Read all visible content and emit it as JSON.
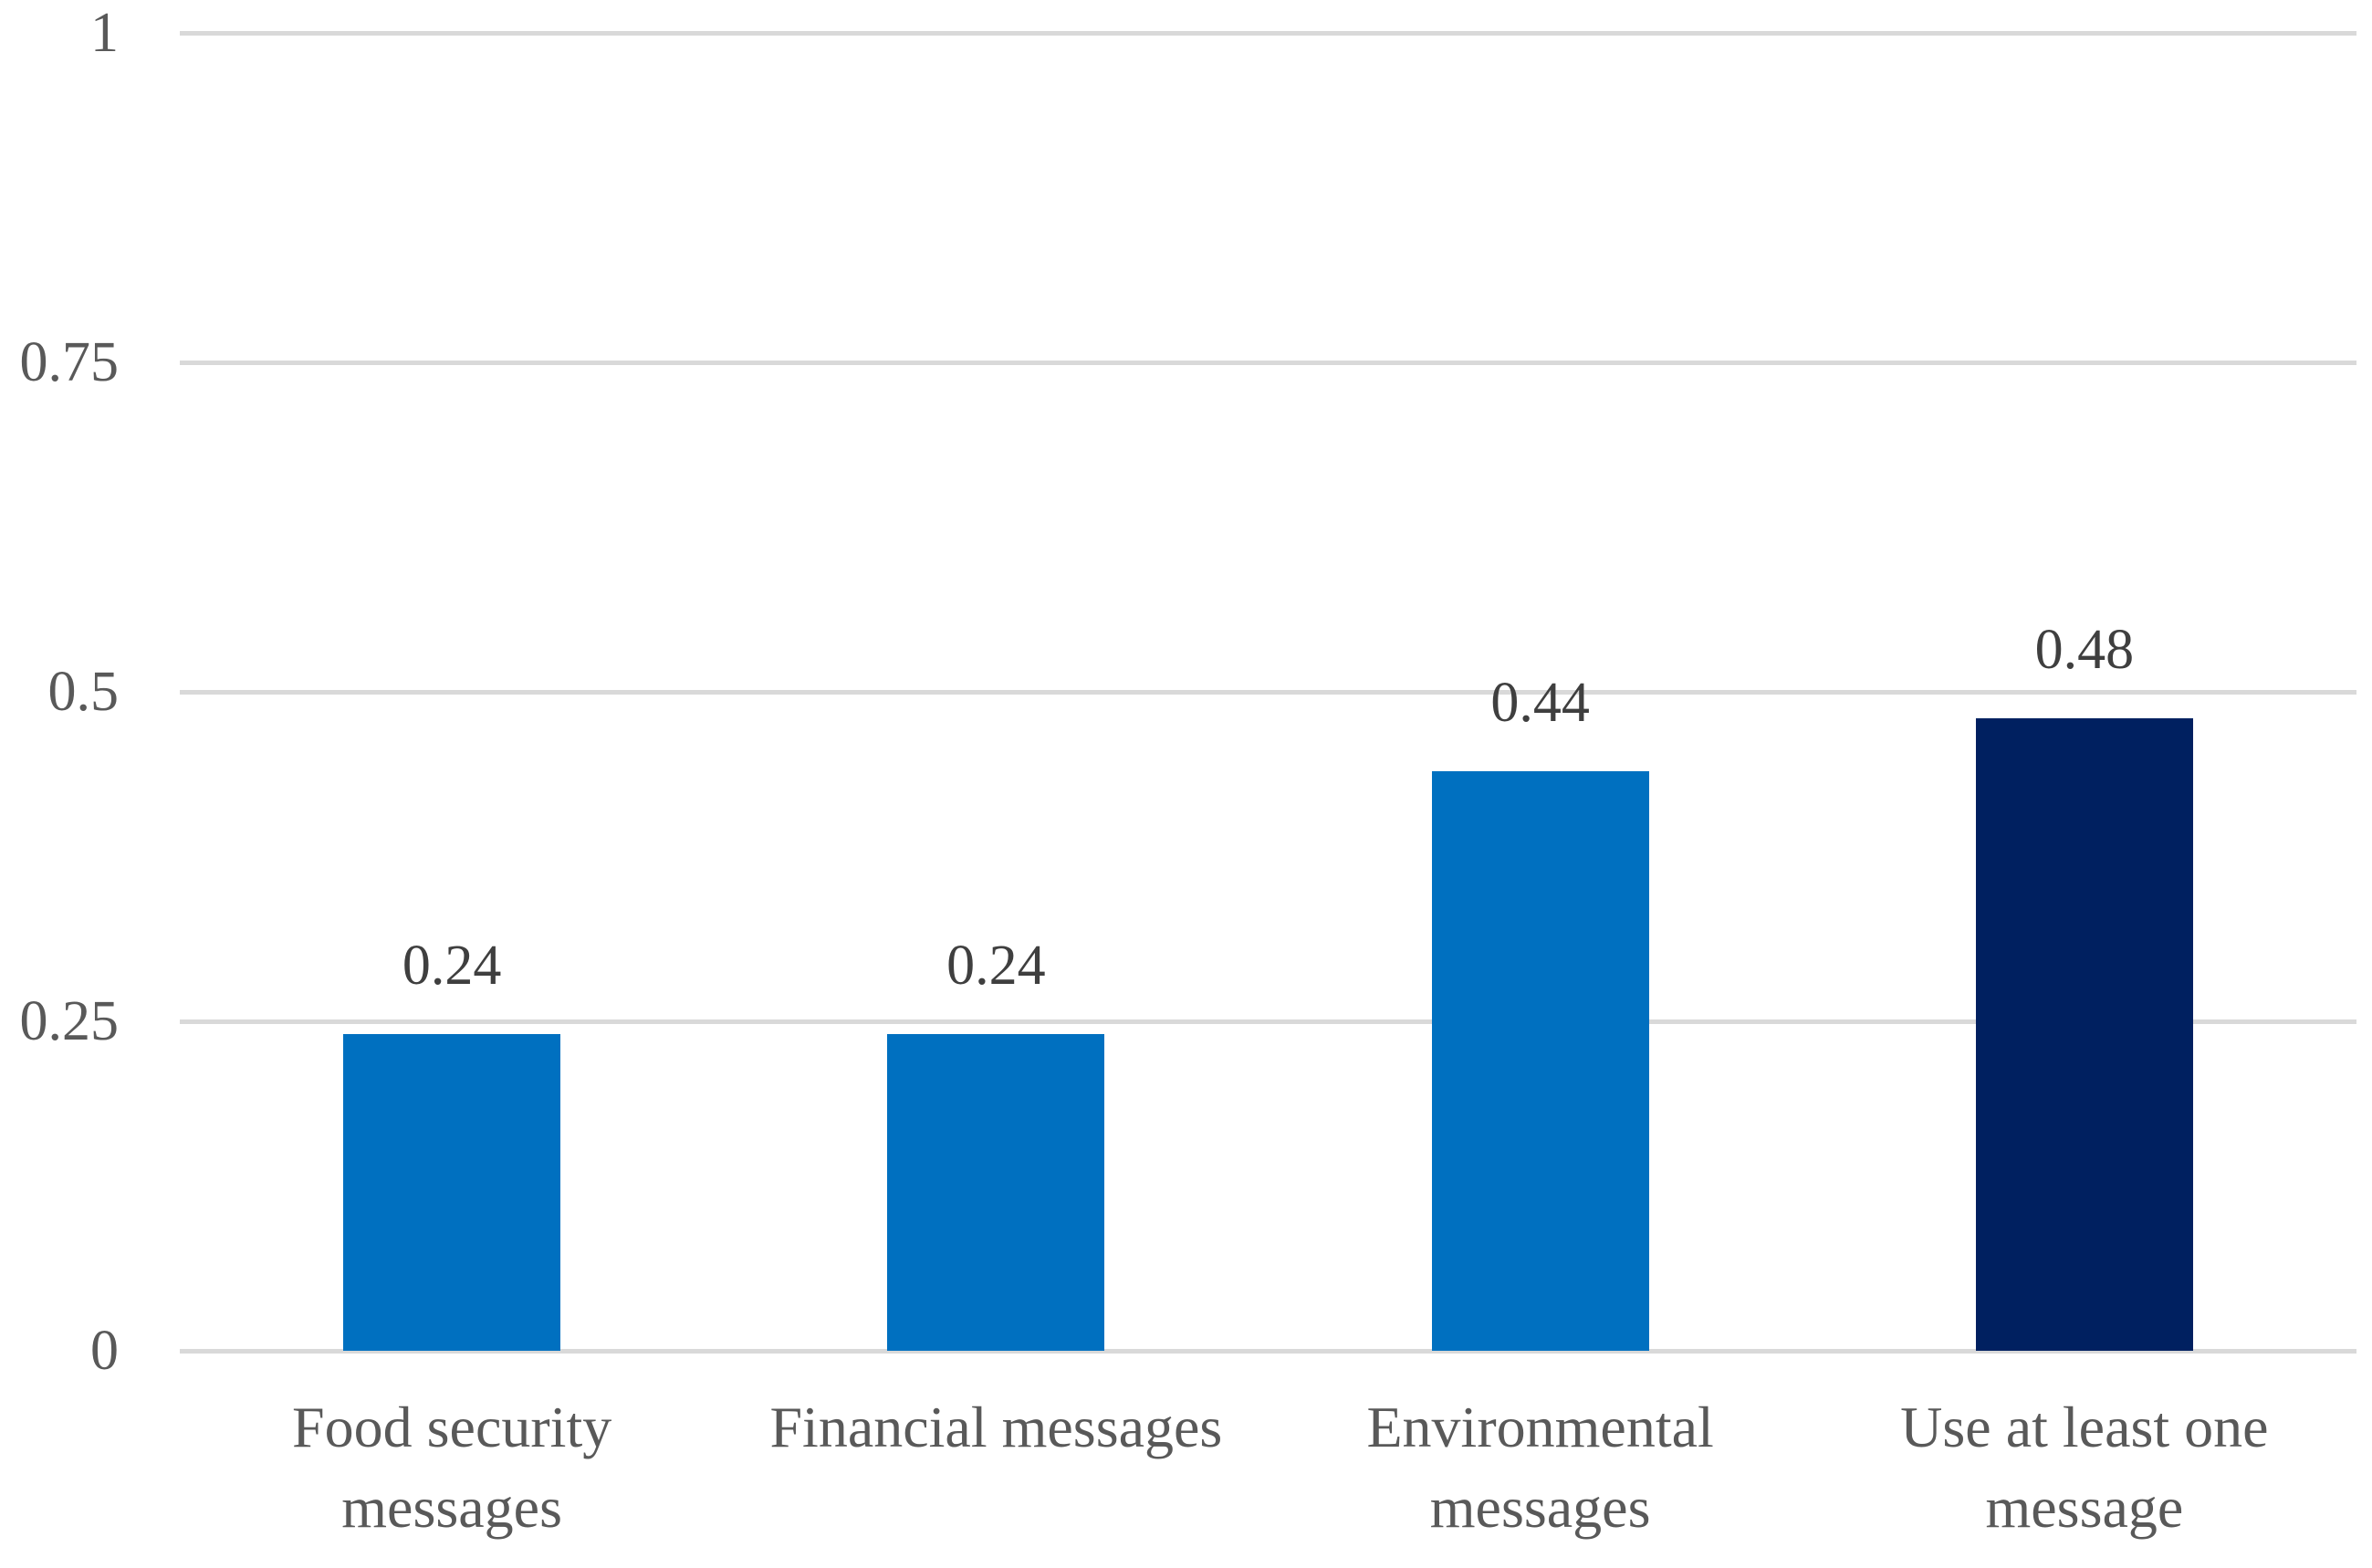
{
  "chart_data": {
    "type": "bar",
    "title": "",
    "xlabel": "",
    "ylabel": "",
    "ylim": [
      0,
      1
    ],
    "grid": true,
    "legend": false,
    "categories": [
      {
        "lines": [
          "Food security",
          "messages"
        ]
      },
      {
        "lines": [
          "Financial messages"
        ]
      },
      {
        "lines": [
          "Environmental",
          "messages"
        ]
      },
      {
        "lines": [
          "Use at least one",
          "message"
        ]
      }
    ],
    "values": [
      0.24,
      0.24,
      0.44,
      0.48
    ],
    "data_labels": [
      "0.24",
      "0.24",
      "0.44",
      "0.48"
    ],
    "bar_colors": [
      "#0070C0",
      "#0070C0",
      "#0070C0",
      "#002060"
    ],
    "yticks": [
      {
        "value": 0,
        "label": "0"
      },
      {
        "value": 0.25,
        "label": "0.25"
      },
      {
        "value": 0.5,
        "label": "0.5"
      },
      {
        "value": 0.75,
        "label": "0.75"
      },
      {
        "value": 1,
        "label": "1"
      }
    ]
  },
  "colors": {
    "background": "#FFFFFF",
    "grid": "#D9D9D9",
    "axis_text": "#595959",
    "category_text": "#595959",
    "data_label_text": "#3F3F3F"
  }
}
